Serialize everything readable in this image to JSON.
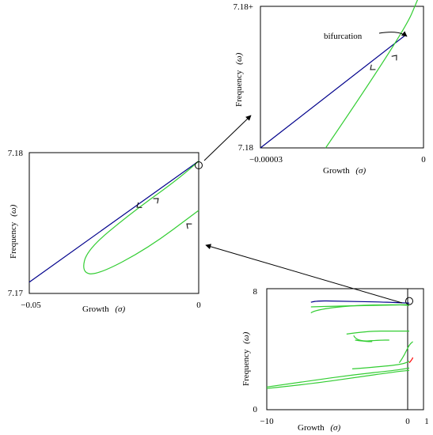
{
  "chart_data": [
    {
      "id": "main",
      "type": "line",
      "xlabel": "Growth",
      "xlabel_symbol": "(σ)",
      "ylabel": "Frequency",
      "ylabel_symbol": "(ω)",
      "xlim": [
        -10,
        1
      ],
      "ylim": [
        0,
        8
      ],
      "x_ticks": [
        "−10",
        "0",
        "1"
      ],
      "y_ticks": [
        "0",
        "8"
      ],
      "annotations": [
        "circle marker at (0, 7.18)"
      ],
      "series": [
        {
          "color": "#00008b",
          "points": [
            [
              -6.9,
              7.1
            ],
            [
              -6.6,
              7.2
            ],
            [
              -5,
              7.18
            ],
            [
              -2,
              7.12
            ],
            [
              0,
              7.05
            ]
          ]
        },
        {
          "color": "#32cd32",
          "points": [
            [
              -6.9,
              6.4
            ],
            [
              -6.6,
              6.6
            ],
            [
              -4,
              6.9
            ],
            [
              -1,
              6.95
            ],
            [
              0,
              6.9
            ]
          ]
        },
        {
          "color": "#32cd32",
          "points": [
            [
              -6.9,
              6.8
            ],
            [
              -5,
              6.85
            ],
            [
              -2,
              6.9
            ],
            [
              0,
              6.95
            ]
          ]
        },
        {
          "color": "#32cd32",
          "points": [
            [
              -3.9,
              4.9
            ],
            [
              -3.7,
              4.5
            ],
            [
              -2,
              4.6
            ],
            [
              -1.4,
              4.6
            ]
          ]
        },
        {
          "color": "#32cd32",
          "points": [
            [
              -4.4,
              5.0
            ],
            [
              -3,
              5.2
            ],
            [
              -1,
              5.2
            ],
            [
              0,
              5.2
            ]
          ]
        },
        {
          "color": "#32cd32",
          "points": [
            [
              -3.8,
              4.6
            ],
            [
              -3.0,
              4.5
            ],
            [
              -2.6,
              4.5
            ]
          ]
        },
        {
          "color": "#32cd32",
          "points": [
            [
              -10,
              1.4
            ],
            [
              -7,
              1.7
            ],
            [
              -4,
              2.1
            ],
            [
              -1,
              2.5
            ],
            [
              0,
              2.6
            ]
          ]
        },
        {
          "color": "#32cd32",
          "points": [
            [
              -10,
              1.5
            ],
            [
              -7,
              1.9
            ],
            [
              -4,
              2.3
            ],
            [
              -1,
              2.6
            ],
            [
              0,
              2.75
            ]
          ]
        },
        {
          "color": "#32cd32",
          "points": [
            [
              -4,
              2.7
            ],
            [
              -2,
              2.85
            ],
            [
              -0.5,
              3.0
            ],
            [
              0,
              3.2
            ]
          ]
        },
        {
          "color": "#32cd32",
          "points": [
            [
              -0.7,
              3.1
            ],
            [
              -0.4,
              3.5
            ],
            [
              0,
              4.3
            ],
            [
              0.25,
              4.5
            ]
          ]
        },
        {
          "color": "#ff0000",
          "points": [
            [
              0,
              3.1
            ],
            [
              0.18,
              3.3
            ],
            [
              0.25,
              3.45
            ]
          ]
        }
      ]
    },
    {
      "id": "zoom1",
      "type": "line",
      "xlabel": "Growth",
      "xlabel_symbol": "(σ)",
      "ylabel": "Frequency",
      "ylabel_symbol": "(ω)",
      "xlim": [
        -0.05,
        0
      ],
      "ylim": [
        7.17,
        7.18
      ],
      "x_ticks": [
        "−0.05",
        "0"
      ],
      "y_ticks": [
        "7.17",
        "7.18"
      ],
      "annotations": [
        "circle marker at (0, 7.18)"
      ],
      "series": [
        {
          "color": "#00008b",
          "points": [
            [
              -0.05,
              7.1708
            ],
            [
              0,
              7.1794
            ]
          ]
        },
        {
          "color": "#32cd32",
          "points": [
            [
              0,
              7.1794
            ],
            [
              -0.005,
              7.1783
            ],
            [
              -0.02,
              7.1757
            ],
            [
              -0.033,
              7.1731
            ],
            [
              -0.0345,
              7.1715
            ],
            [
              -0.03,
              7.1713
            ],
            [
              -0.015,
              7.1732
            ],
            [
              0,
              7.1759
            ]
          ]
        }
      ]
    },
    {
      "id": "zoom2",
      "type": "line",
      "xlabel": "Growth",
      "xlabel_symbol": "(σ)",
      "ylabel": "Frequency",
      "ylabel_symbol": "(ω)",
      "xlim": [
        -3e-05,
        0
      ],
      "ylim": [
        7.18,
        7.18001
      ],
      "x_ticks": [
        "−0.00003",
        "0"
      ],
      "y_ticks": [
        "7.18",
        "7.18+"
      ],
      "annotations": [
        "bifurcation"
      ],
      "series": [
        {
          "color": "#00008b",
          "points": [
            [
              -3e-05,
              7.18
            ],
            [
              -3.2e-06,
              7.180008
            ]
          ]
        },
        {
          "color": "#32cd32",
          "points": [
            [
              -1.8e-05,
              7.18
            ],
            [
              -3.8e-06,
              7.180008
            ],
            [
              -5e-07,
              7.180011
            ]
          ]
        }
      ]
    }
  ]
}
